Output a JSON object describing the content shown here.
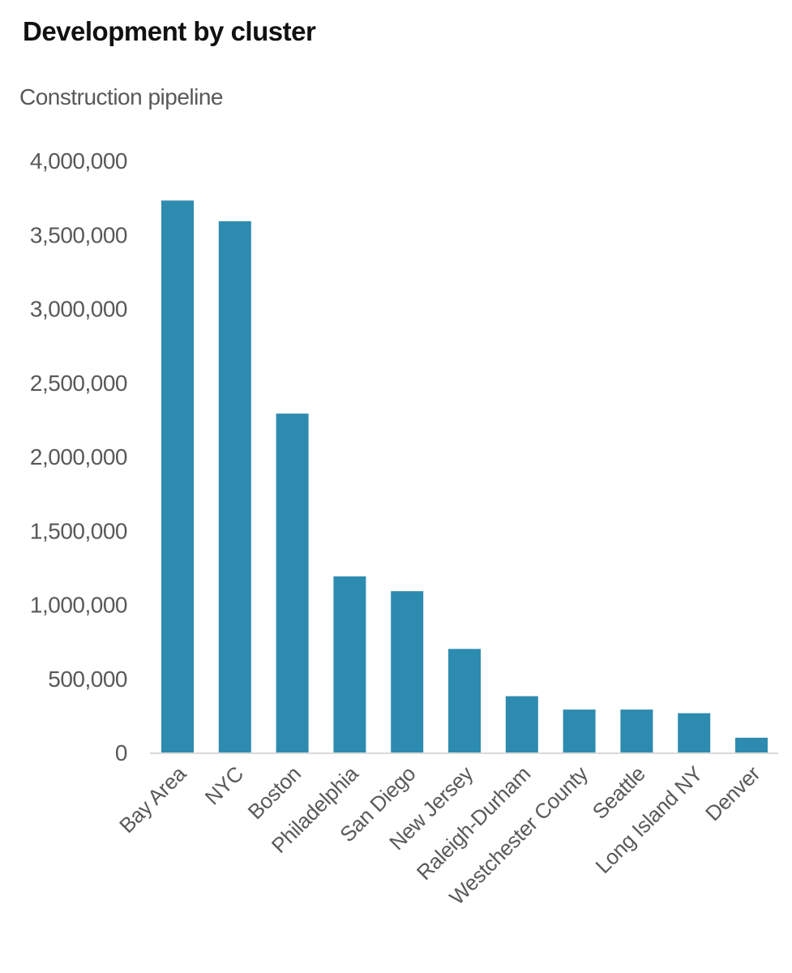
{
  "chart_data": {
    "type": "bar",
    "title": "Development by cluster",
    "subtitle": "Construction pipeline",
    "xlabel": "",
    "ylabel": "",
    "categories": [
      "Bay Area",
      "NYC",
      "Boston",
      "Philadelphia",
      "San Diego",
      "New Jersey",
      "Raleigh-Durham",
      "Westchester County",
      "Seattle",
      "Long Island NY",
      "Denver"
    ],
    "values": [
      3730000,
      3590000,
      2290000,
      1190000,
      1090000,
      700000,
      380000,
      290000,
      290000,
      265000,
      100000
    ],
    "ylim": [
      0,
      4000000
    ],
    "yticks": [
      0,
      500000,
      1000000,
      1500000,
      2000000,
      2500000,
      3000000,
      3500000,
      4000000
    ],
    "ytick_labels": [
      "0",
      "500,000",
      "1,000,000",
      "1,500,000",
      "2,000,000",
      "2,500,000",
      "3,000,000",
      "3,500,000",
      "4,000,000"
    ],
    "grid": false,
    "legend": "none",
    "colors": {
      "bar": "#2e8bb0",
      "axis": "#d9d9d9",
      "text": "#595959",
      "title": "#111111"
    }
  }
}
